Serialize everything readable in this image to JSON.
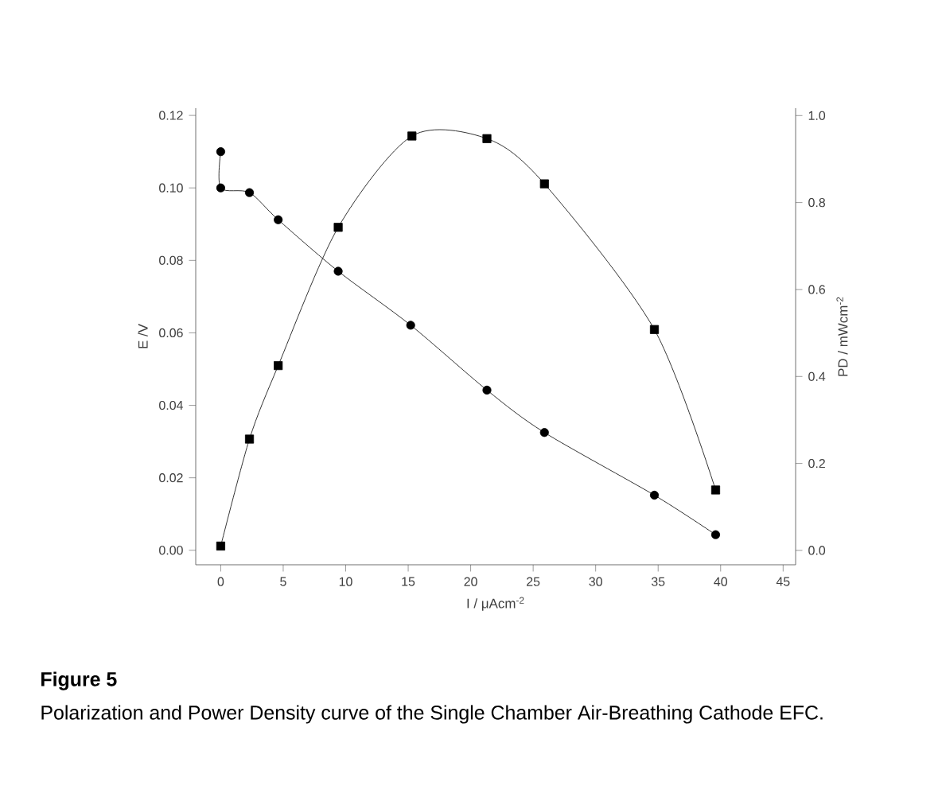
{
  "chart_data": {
    "type": "line",
    "title": "Figure 5",
    "annotations": [
      "Polarization and Power Density curve of the Single Chamber Air-Breathing Cathode EFC."
    ],
    "xlabel": "I / μAcm$^{-2}$",
    "ylabel": "E /V",
    "y2label": "PD / mWcm$^{-2}$",
    "xlim": [
      -2,
      46
    ],
    "xticks": [
      0,
      5,
      10,
      15,
      20,
      25,
      30,
      35,
      40,
      45
    ],
    "ylim": [
      -0.004,
      0.122
    ],
    "yticks": [
      {
        "value": 0,
        "label": "0.00"
      },
      {
        "value": 0.02,
        "label": "0.02"
      },
      {
        "value": 0.04,
        "label": "0.04"
      },
      {
        "value": 0.06,
        "label": "0.06"
      },
      {
        "value": 0.08,
        "label": "0.08"
      },
      {
        "value": 0.1,
        "label": "0.10"
      },
      {
        "value": 0.12,
        "label": "0.12"
      }
    ],
    "y2lim": [
      -0.033,
      1.017
    ],
    "y2ticks": [
      {
        "value": 0,
        "label": "0.0"
      },
      {
        "value": 0.2,
        "label": "0.2"
      },
      {
        "value": 0.4,
        "label": "0.4"
      },
      {
        "value": 0.6,
        "label": "0.6"
      },
      {
        "value": 0.8,
        "label": "0.8"
      },
      {
        "value": 1,
        "label": "1.0"
      }
    ],
    "line_style": "solid",
    "series": [
      {
        "color": "#000000",
        "marker": "circle",
        "x": [
          0,
          0,
          2.3,
          4.6,
          9.4,
          15.2,
          21.3,
          25.9,
          34.7,
          39.6
        ],
        "values": [
          0.11,
          0.1,
          0.0987,
          0.0912,
          0.077,
          0.0621,
          0.0442,
          0.0325,
          0.0152,
          0.0043
        ]
      },
      {
        "color": "#000000",
        "marker": "square",
        "axis": "y2",
        "x": [
          0,
          2.3,
          4.6,
          9.4,
          15.3,
          21.3,
          25.9,
          34.7,
          39.6
        ],
        "values": [
          0.01,
          0.256,
          0.425,
          0.743,
          0.953,
          0.947,
          0.843,
          0.508,
          0.139
        ]
      }
    ]
  }
}
